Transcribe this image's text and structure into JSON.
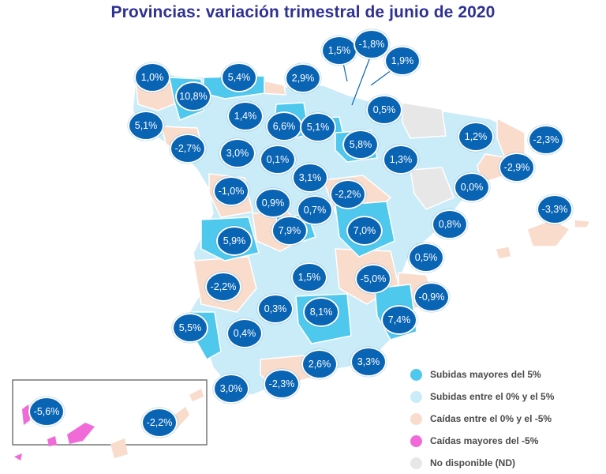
{
  "title": "Provincias: variación trimestral de junio de 2020",
  "colors": {
    "up_major": "#4fc8ee",
    "up_minor": "#c9ecf8",
    "down_minor": "#f9dccb",
    "down_major": "#f06ad8",
    "no_data": "#e7e7e7",
    "badge": "#0a64b4"
  },
  "badges": [
    {
      "id": "badge-1",
      "label": "1,0%"
    },
    {
      "id": "badge-2",
      "label": "10,8%"
    },
    {
      "id": "badge-3",
      "label": "5,4%"
    },
    {
      "id": "badge-4",
      "label": "2,9%"
    },
    {
      "id": "badge-5",
      "label": "1,5%"
    },
    {
      "id": "badge-6",
      "label": "-1,8%"
    },
    {
      "id": "badge-7",
      "label": "1,9%"
    },
    {
      "id": "badge-8",
      "label": "0,5%"
    },
    {
      "id": "badge-9",
      "label": "5,1%"
    },
    {
      "id": "badge-10",
      "label": "1,4%"
    },
    {
      "id": "badge-11",
      "label": "6,6%"
    },
    {
      "id": "badge-12",
      "label": "5,1%"
    },
    {
      "id": "badge-13",
      "label": "5,8%"
    },
    {
      "id": "badge-14",
      "label": "1,2%"
    },
    {
      "id": "badge-15",
      "label": "-2,3%"
    },
    {
      "id": "badge-16",
      "label": "-2,7%"
    },
    {
      "id": "badge-17",
      "label": "3,0%"
    },
    {
      "id": "badge-18",
      "label": "0,1%"
    },
    {
      "id": "badge-19",
      "label": "1,3%"
    },
    {
      "id": "badge-20",
      "label": "-2,9%"
    },
    {
      "id": "badge-21",
      "label": "3,1%"
    },
    {
      "id": "badge-22",
      "label": "-1,0%"
    },
    {
      "id": "badge-23",
      "label": "0,9%"
    },
    {
      "id": "badge-24",
      "label": "0,7%"
    },
    {
      "id": "badge-25",
      "label": "-2,2%"
    },
    {
      "id": "badge-26",
      "label": "0,0%"
    },
    {
      "id": "badge-27",
      "label": "-3,3%"
    },
    {
      "id": "badge-28",
      "label": "7,9%"
    },
    {
      "id": "badge-29",
      "label": "7,0%"
    },
    {
      "id": "badge-30",
      "label": "0,8%"
    },
    {
      "id": "badge-31",
      "label": "5,9%"
    },
    {
      "id": "badge-32",
      "label": "0,5%"
    },
    {
      "id": "badge-33",
      "label": "-2,2%"
    },
    {
      "id": "badge-34",
      "label": "1,5%"
    },
    {
      "id": "badge-35",
      "label": "-5,0%"
    },
    {
      "id": "badge-36",
      "label": "-0,9%"
    },
    {
      "id": "badge-37",
      "label": "0,3%"
    },
    {
      "id": "badge-38",
      "label": "8,1%"
    },
    {
      "id": "badge-39",
      "label": "7,4%"
    },
    {
      "id": "badge-40",
      "label": "5,5%"
    },
    {
      "id": "badge-41",
      "label": "0,4%"
    },
    {
      "id": "badge-42",
      "label": "2,6%"
    },
    {
      "id": "badge-43",
      "label": "3,3%"
    },
    {
      "id": "badge-44",
      "label": "3,0%"
    },
    {
      "id": "badge-45",
      "label": "-2,3%"
    },
    {
      "id": "badge-46",
      "label": "-5,6%"
    },
    {
      "id": "badge-47",
      "label": "-2,2%"
    }
  ],
  "legend": [
    {
      "label": "Subidas mayores del 5%",
      "color": "#4fc8ee"
    },
    {
      "label": "Subidas entre el 0% y el 5%",
      "color": "#c9ecf8"
    },
    {
      "label": "Caídas entre el 0% y el -5%",
      "color": "#f9dccb"
    },
    {
      "label": "Caídas mayores del -5%",
      "color": "#f06ad8"
    },
    {
      "label": "No disponible (ND)",
      "color": "#e7e7e7"
    }
  ]
}
